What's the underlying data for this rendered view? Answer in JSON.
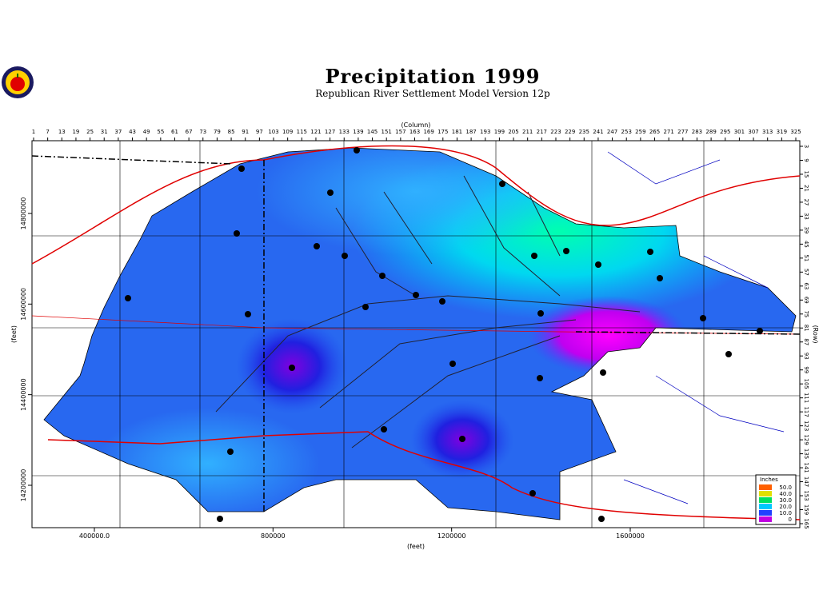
{
  "header": {
    "title": "Precipitation 1999",
    "subtitle": "Republican River Settlement Model Version 12p"
  },
  "axes": {
    "column_label": "(Column)",
    "columns": [
      1,
      7,
      13,
      19,
      25,
      31,
      37,
      43,
      49,
      55,
      61,
      67,
      73,
      79,
      85,
      91,
      97,
      103,
      109,
      115,
      121,
      127,
      133,
      139,
      145,
      151,
      157,
      163,
      169,
      175,
      181,
      187,
      193,
      199,
      205,
      211,
      217,
      223,
      229,
      235,
      241,
      247,
      253,
      259,
      265,
      271,
      277,
      283,
      289,
      295,
      301,
      307,
      313,
      319,
      325
    ],
    "row_label": "(Row)",
    "rows": [
      3,
      9,
      15,
      21,
      27,
      33,
      39,
      45,
      51,
      57,
      63,
      69,
      75,
      81,
      87,
      93,
      99,
      105,
      111,
      117,
      123,
      129,
      135,
      141,
      147,
      153,
      159,
      165
    ],
    "x_label": "(feet)",
    "xticks": [
      {
        "value": 400000,
        "label": "400000.0"
      },
      800000,
      1200000,
      1600000
    ],
    "y_label": "(feet)",
    "yticks": [
      14800000,
      14600000,
      14400000,
      14200000
    ]
  },
  "legend": {
    "title": "Inches",
    "items": [
      {
        "label": "50.0",
        "color": "#ff6000"
      },
      {
        "label": "40.0",
        "color": "#e0e000"
      },
      {
        "label": "30.0",
        "color": "#00e060"
      },
      {
        "label": "20.0",
        "color": "#00c8ff"
      },
      {
        "label": "10.0",
        "color": "#2040ff"
      },
      {
        "label": "0",
        "color": "#c000e0"
      }
    ]
  }
}
